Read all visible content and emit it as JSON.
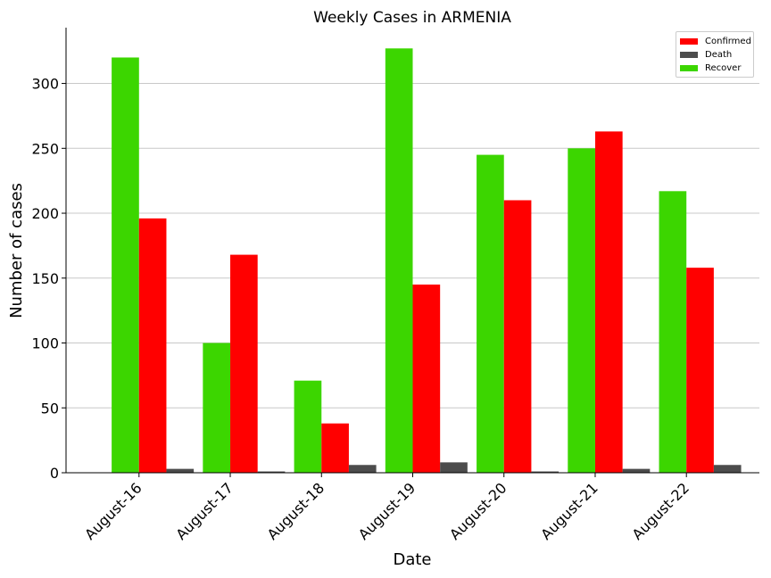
{
  "chart_data": {
    "type": "bar",
    "title": "Weekly Cases in ARMENIA",
    "xlabel": "Date",
    "ylabel": "Number of cases",
    "categories": [
      "August-16",
      "August-17",
      "August-18",
      "August-19",
      "August-20",
      "August-21",
      "August-22"
    ],
    "series": [
      {
        "name": "Recover",
        "color": "#3cd600",
        "values": [
          320,
          100,
          71,
          327,
          245,
          250,
          217
        ]
      },
      {
        "name": "Confirmed",
        "color": "#ff0000",
        "values": [
          196,
          168,
          38,
          145,
          210,
          263,
          158
        ]
      },
      {
        "name": "Death",
        "color": "#4c4c4c",
        "values": [
          3,
          1,
          6,
          8,
          1,
          3,
          6
        ]
      }
    ],
    "legend_order": [
      "Confirmed",
      "Death",
      "Recover"
    ],
    "ylim": [
      0,
      343
    ],
    "yticks": [
      0,
      50,
      100,
      150,
      200,
      250,
      300
    ],
    "grid": "horizontal",
    "legend_position": "top-right"
  }
}
